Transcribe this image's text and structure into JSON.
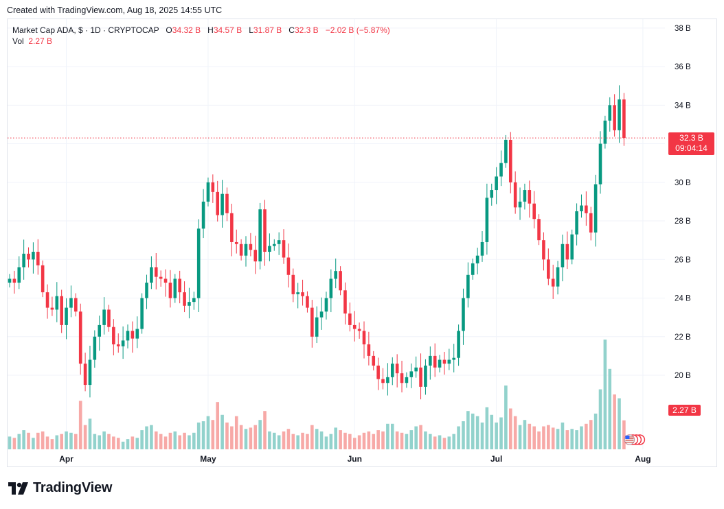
{
  "header": {
    "created_text": "Created with TradingView.com, Aug 18, 2025 14:55 UTC"
  },
  "legend": {
    "symbol": "Market Cap ADA, $ · 1D · CRYPTOCAP",
    "open_label": "O",
    "open_value": "34.32 B",
    "high_label": "H",
    "high_value": "34.57 B",
    "low_label": "L",
    "low_value": "31.87 B",
    "close_label": "C",
    "close_value": "32.3 B",
    "change_value": "−2.02 B (−5.87%)",
    "vol_label": "Vol",
    "vol_value": "2.27 B"
  },
  "price_tag": {
    "price": "32.3 B",
    "countdown": "09:04:14"
  },
  "volume_tag": "2.27 B",
  "brand": {
    "name": "TradingView",
    "icon": "tradingview-logo-icon"
  },
  "colors": {
    "up": "#089981",
    "down": "#f23645",
    "up_vol": "#92d2cc",
    "down_vol": "#f7a9a7",
    "grid": "#f0f3fa",
    "axis_text": "#131722"
  },
  "chart_data": {
    "type": "candlestick",
    "title": "Market Cap ADA, $ · 1D · CRYPTOCAP",
    "y_unit": "B",
    "ylim": [
      17.8,
      39.0
    ],
    "y_ticks": [
      "20 B",
      "22 B",
      "24 B",
      "26 B",
      "28 B",
      "30 B",
      "32 B",
      "34 B",
      "36 B",
      "38 B"
    ],
    "y_tick_values": [
      20,
      22,
      24,
      26,
      28,
      30,
      32,
      34,
      36,
      38
    ],
    "x_ticks": [
      "Apr",
      "May",
      "Jun",
      "Jul",
      "Aug"
    ],
    "x_tick_dates": [
      "2025-04-01",
      "2025-05-01",
      "2025-06-01",
      "2025-07-01",
      "2025-08-01"
    ],
    "start_date": "2025-03-20",
    "grid": true,
    "current_price": 32.3,
    "close_series": [
      25.0,
      24.8,
      25.6,
      26.3,
      26.0,
      26.4,
      25.7,
      24.3,
      23.5,
      23.4,
      24.1,
      22.6,
      23.5,
      24.0,
      23.3,
      20.6,
      19.5,
      20.8,
      22.0,
      22.6,
      23.4,
      22.5,
      21.6,
      21.5,
      21.8,
      22.3,
      21.9,
      22.4,
      24.0,
      24.8,
      25.6,
      25.1,
      25.0,
      24.8,
      24.0,
      25.0,
      24.3,
      23.6,
      23.8,
      24.0,
      27.6,
      29.0,
      30.0,
      29.5,
      28.3,
      29.4,
      28.4,
      26.9,
      26.8,
      26.2,
      26.8,
      26.5,
      25.9,
      28.6,
      26.4,
      26.7,
      26.8,
      27.0,
      26.1,
      25.2,
      24.2,
      24.3,
      24.1,
      23.5,
      22.0,
      23.0,
      23.3,
      24.0,
      25.0,
      25.4,
      24.4,
      23.2,
      22.6,
      22.4,
      22.3,
      21.6,
      21.0,
      20.5,
      19.8,
      19.6,
      19.9,
      20.6,
      20.1,
      19.6,
      19.9,
      20.2,
      20.4,
      19.4,
      20.5,
      21.0,
      20.4,
      20.8,
      20.6,
      20.8,
      20.9,
      22.3,
      24.0,
      25.2,
      25.8,
      26.2,
      26.9,
      29.2,
      29.6,
      30.3,
      31.0,
      32.2,
      30.0,
      28.7,
      29.0,
      29.6,
      28.9,
      28.1,
      27.0,
      26.0,
      25.0,
      24.6,
      25.6,
      26.8,
      26.0,
      27.3,
      28.5,
      28.8,
      28.4,
      27.4,
      29.9,
      32.0,
      33.2,
      34.0,
      32.7,
      34.3,
      32.3
    ],
    "volume_series": [
      1.0,
      0.9,
      1.2,
      1.5,
      1.3,
      0.9,
      1.3,
      1.4,
      1.0,
      0.8,
      1.1,
      1.2,
      1.4,
      1.3,
      1.2,
      3.8,
      1.9,
      2.4,
      1.2,
      1.1,
      1.4,
      1.2,
      1.0,
      0.9,
      0.6,
      0.8,
      1.0,
      0.9,
      1.5,
      1.8,
      1.9,
      1.4,
      1.2,
      1.0,
      1.3,
      1.4,
      1.1,
      1.3,
      1.1,
      1.3,
      2.1,
      2.2,
      2.6,
      2.3,
      3.7,
      2.7,
      2.1,
      1.8,
      2.6,
      1.9,
      1.6,
      1.7,
      1.9,
      2.3,
      3.0,
      1.4,
      1.3,
      1.1,
      1.4,
      1.6,
      1.2,
      1.1,
      1.3,
      1.2,
      1.9,
      1.6,
      1.4,
      1.0,
      1.2,
      1.7,
      1.5,
      1.3,
      1.2,
      0.9,
      1.1,
      1.3,
      1.4,
      1.2,
      1.5,
      1.4,
      2.0,
      2.0,
      1.4,
      1.3,
      1.2,
      1.5,
      1.8,
      1.9,
      1.4,
      1.2,
      1.0,
      1.1,
      0.9,
      1.0,
      1.2,
      1.8,
      2.2,
      3.0,
      2.8,
      2.6,
      2.1,
      3.3,
      2.7,
      2.1,
      2.5,
      5.0,
      3.2,
      2.6,
      1.9,
      2.3,
      2.0,
      1.8,
      1.4,
      1.8,
      1.9,
      1.7,
      1.6,
      2.1,
      1.5,
      1.6,
      1.5,
      1.8,
      2.0,
      2.3,
      2.8,
      4.7,
      8.6,
      6.3,
      4.3,
      4.0,
      2.27
    ]
  }
}
